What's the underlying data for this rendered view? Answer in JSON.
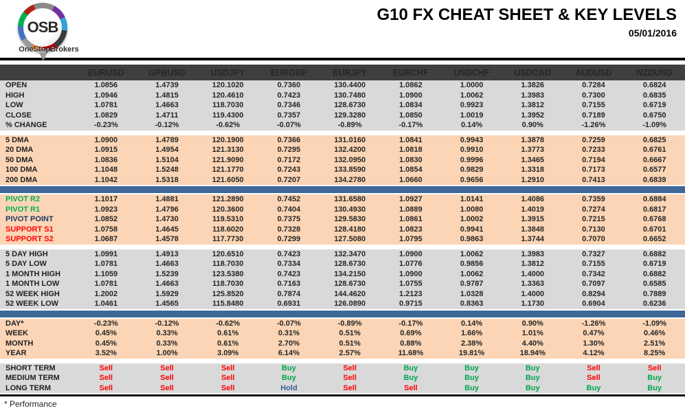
{
  "logo": {
    "text": "OSB",
    "brand": "OneStopBrokers"
  },
  "header": {
    "title": "G10 FX CHEAT SHEET & KEY LEVELS",
    "date": "05/01/2016"
  },
  "footer": {
    "note": "* Performance"
  },
  "colors": {
    "header_band": "#3F3F3F",
    "section_gray": "#D9D9D9",
    "section_peach": "#FBD5B5",
    "divider_blue": "#3E6897",
    "buy_green": "#00A650",
    "sell_red": "#FF0000",
    "hold_blue": "#376091",
    "pivot_navy": "#17375D"
  },
  "columns": [
    "EURUSD",
    "GPBUSD",
    "USDJPY",
    "EURGBP",
    "EURJPY",
    "EURCHF",
    "USDCHF",
    "USDCAD",
    "AUDUSD",
    "NZDUSD"
  ],
  "sections": [
    {
      "type": "rows",
      "bg": "gray",
      "rows": [
        {
          "label": "OPEN",
          "values": [
            "1.0856",
            "1.4739",
            "120.1020",
            "0.7360",
            "130.4400",
            "1.0862",
            "1.0000",
            "1.3826",
            "0.7284",
            "0.6824"
          ]
        },
        {
          "label": "HIGH",
          "values": [
            "1.0946",
            "1.4815",
            "120.4610",
            "0.7423",
            "130.7480",
            "1.0900",
            "1.0062",
            "1.3983",
            "0.7300",
            "0.6835"
          ]
        },
        {
          "label": "LOW",
          "values": [
            "1.0781",
            "1.4663",
            "118.7030",
            "0.7346",
            "128.6730",
            "1.0834",
            "0.9923",
            "1.3812",
            "0.7155",
            "0.6719"
          ]
        },
        {
          "label": "CLOSE",
          "values": [
            "1.0829",
            "1.4711",
            "119.4300",
            "0.7357",
            "129.3280",
            "1.0850",
            "1.0019",
            "1.3952",
            "0.7189",
            "0.6750"
          ]
        },
        {
          "label": "% CHANGE",
          "values": [
            "-0.23%",
            "-0.12%",
            "-0.62%",
            "-0.07%",
            "-0.89%",
            "-0.17%",
            "0.14%",
            "0.90%",
            "-1.26%",
            "-1.09%"
          ]
        }
      ]
    },
    {
      "type": "gap"
    },
    {
      "type": "rows",
      "bg": "peach",
      "rows": [
        {
          "label": "5 DMA",
          "values": [
            "1.0900",
            "1.4789",
            "120.1900",
            "0.7366",
            "131.0160",
            "1.0841",
            "0.9943",
            "1.3878",
            "0.7259",
            "0.6825"
          ]
        },
        {
          "label": "20 DMA",
          "values": [
            "1.0915",
            "1.4954",
            "121.3130",
            "0.7295",
            "132.4200",
            "1.0818",
            "0.9910",
            "1.3773",
            "0.7233",
            "0.6761"
          ]
        },
        {
          "label": "50 DMA",
          "values": [
            "1.0836",
            "1.5104",
            "121.9090",
            "0.7172",
            "132.0950",
            "1.0830",
            "0.9996",
            "1.3465",
            "0.7194",
            "0.6667"
          ]
        },
        {
          "label": "100 DMA",
          "values": [
            "1.1048",
            "1.5248",
            "121.1770",
            "0.7243",
            "133.8590",
            "1.0854",
            "0.9829",
            "1.3318",
            "0.7173",
            "0.6577"
          ]
        },
        {
          "label": "200 DMA",
          "values": [
            "1.1042",
            "1.5318",
            "121.6050",
            "0.7207",
            "134.2780",
            "1.0660",
            "0.9656",
            "1.2910",
            "0.7413",
            "0.6839"
          ]
        }
      ]
    },
    {
      "type": "band"
    },
    {
      "type": "rows",
      "bg": "peach",
      "rows": [
        {
          "label": "PIVOT R2",
          "label_color": "green",
          "values": [
            "1.1017",
            "1.4881",
            "121.2890",
            "0.7452",
            "131.6580",
            "1.0927",
            "1.0141",
            "1.4086",
            "0.7359",
            "0.6884"
          ]
        },
        {
          "label": "PIVOT R1",
          "label_color": "green",
          "values": [
            "1.0923",
            "1.4796",
            "120.3600",
            "0.7404",
            "130.4930",
            "1.0889",
            "1.0080",
            "1.4019",
            "0.7274",
            "0.6817"
          ]
        },
        {
          "label": "PIVOT POINT",
          "label_color": "navy",
          "values": [
            "1.0852",
            "1.4730",
            "119.5310",
            "0.7375",
            "129.5830",
            "1.0861",
            "1.0002",
            "1.3915",
            "0.7215",
            "0.6768"
          ]
        },
        {
          "label": "SUPPORT S1",
          "label_color": "red",
          "values": [
            "1.0758",
            "1.4645",
            "118.6020",
            "0.7328",
            "128.4180",
            "1.0823",
            "0.9941",
            "1.3848",
            "0.7130",
            "0.6701"
          ]
        },
        {
          "label": "SUPPORT S2",
          "label_color": "red",
          "values": [
            "1.0687",
            "1.4578",
            "117.7730",
            "0.7299",
            "127.5080",
            "1.0795",
            "0.9863",
            "1.3744",
            "0.7070",
            "0.6652"
          ]
        }
      ]
    },
    {
      "type": "gap"
    },
    {
      "type": "rows",
      "bg": "gray",
      "rows": [
        {
          "label": "5 DAY HIGH",
          "values": [
            "1.0991",
            "1.4913",
            "120.6510",
            "0.7423",
            "132.3470",
            "1.0900",
            "1.0062",
            "1.3983",
            "0.7327",
            "0.6882"
          ]
        },
        {
          "label": "5 DAY LOW",
          "values": [
            "1.0781",
            "1.4663",
            "118.7030",
            "0.7334",
            "128.6730",
            "1.0776",
            "0.9856",
            "1.3812",
            "0.7155",
            "0.6719"
          ]
        },
        {
          "label": "1 MONTH HIGH",
          "values": [
            "1.1059",
            "1.5239",
            "123.5380",
            "0.7423",
            "134.2150",
            "1.0900",
            "1.0062",
            "1.4000",
            "0.7342",
            "0.6882"
          ]
        },
        {
          "label": "1 MONTH LOW",
          "values": [
            "1.0781",
            "1.4663",
            "118.7030",
            "0.7163",
            "128.6730",
            "1.0755",
            "0.9787",
            "1.3363",
            "0.7097",
            "0.6585"
          ]
        },
        {
          "label": "52 WEEK HIGH",
          "values": [
            "1.2002",
            "1.5929",
            "125.8520",
            "0.7874",
            "144.4620",
            "1.2123",
            "1.0328",
            "1.4000",
            "0.8294",
            "0.7889"
          ]
        },
        {
          "label": "52 WEEK LOW",
          "values": [
            "1.0461",
            "1.4565",
            "115.8480",
            "0.6931",
            "126.0890",
            "0.9715",
            "0.8363",
            "1.1730",
            "0.6904",
            "0.6236"
          ]
        }
      ]
    },
    {
      "type": "band"
    },
    {
      "type": "rows",
      "bg": "peach",
      "rows": [
        {
          "label": "DAY*",
          "values": [
            "-0.23%",
            "-0.12%",
            "-0.62%",
            "-0.07%",
            "-0.89%",
            "-0.17%",
            "0.14%",
            "0.90%",
            "-1.26%",
            "-1.09%"
          ]
        },
        {
          "label": "WEEK",
          "values": [
            "0.45%",
            "0.33%",
            "0.61%",
            "0.31%",
            "0.51%",
            "0.69%",
            "1.66%",
            "1.01%",
            "0.47%",
            "0.46%"
          ]
        },
        {
          "label": "MONTH",
          "values": [
            "0.45%",
            "0.33%",
            "0.61%",
            "2.70%",
            "0.51%",
            "0.88%",
            "2.38%",
            "4.40%",
            "1.30%",
            "2.51%"
          ]
        },
        {
          "label": "YEAR",
          "values": [
            "3.52%",
            "1.00%",
            "3.09%",
            "6.14%",
            "2.57%",
            "11.68%",
            "19.81%",
            "18.94%",
            "4.12%",
            "8.25%"
          ]
        }
      ]
    },
    {
      "type": "gap"
    },
    {
      "type": "rows",
      "bg": "gray",
      "signals": true,
      "rows": [
        {
          "label": "SHORT TERM",
          "values": [
            "Sell",
            "Sell",
            "Sell",
            "Buy",
            "Sell",
            "Buy",
            "Buy",
            "Buy",
            "Sell",
            "Sell"
          ]
        },
        {
          "label": "MEDIUM TERM",
          "values": [
            "Sell",
            "Sell",
            "Sell",
            "Buy",
            "Sell",
            "Buy",
            "Buy",
            "Buy",
            "Sell",
            "Buy"
          ]
        },
        {
          "label": "LONG TERM",
          "values": [
            "Sell",
            "Sell",
            "Sell",
            "Hold",
            "Sell",
            "Sell",
            "Buy",
            "Buy",
            "Buy",
            "Buy"
          ]
        }
      ]
    }
  ]
}
